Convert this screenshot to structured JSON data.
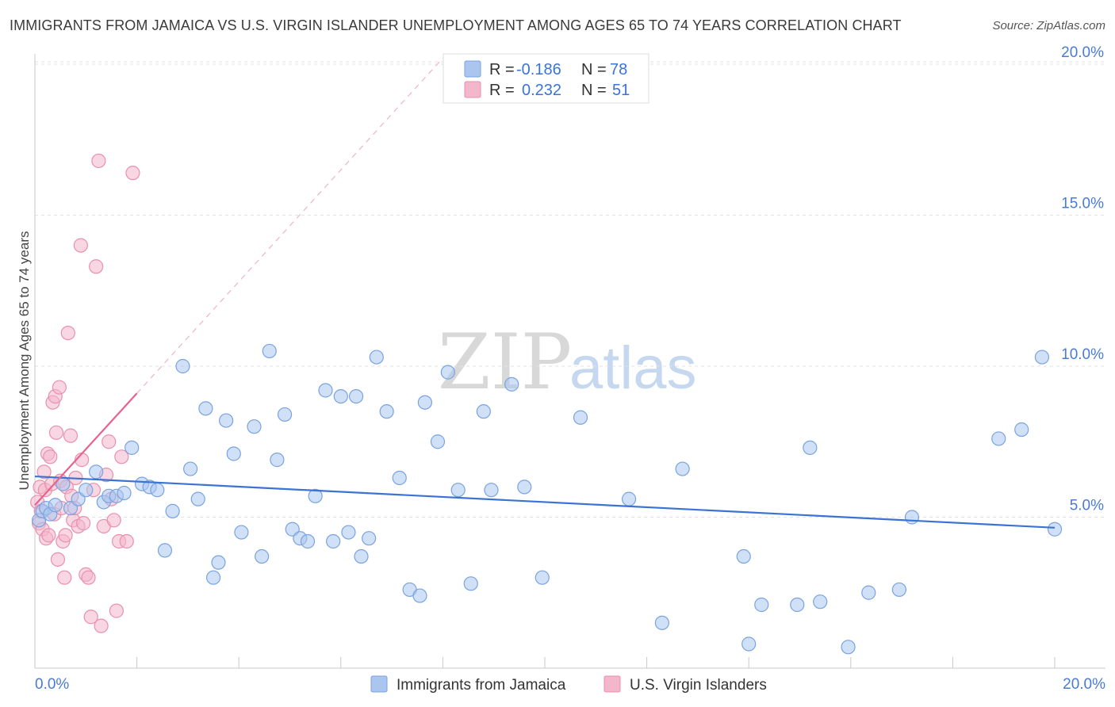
{
  "header": {
    "title": "IMMIGRANTS FROM JAMAICA VS U.S. VIRGIN ISLANDER UNEMPLOYMENT AMONG AGES 65 TO 74 YEARS CORRELATION CHART",
    "source": "Source: ZipAtlas.com"
  },
  "watermark": {
    "zip": "ZIP",
    "atlas": "atlas"
  },
  "legend": {
    "rows": [
      {
        "r_label": "R =",
        "r_value": "-0.186",
        "n_label": "N =",
        "n_value": "78"
      },
      {
        "r_label": "R =",
        "r_value": "0.232",
        "n_label": "N =",
        "n_value": "51"
      }
    ]
  },
  "bottom_legend": {
    "series1": "Immigrants from Jamaica",
    "series2": "U.S. Virgin Islanders"
  },
  "chart_data": {
    "type": "scatter",
    "title": "IMMIGRANTS FROM JAMAICA VS U.S. VIRGIN ISLANDER UNEMPLOYMENT AMONG AGES 65 TO 74 YEARS CORRELATION CHART",
    "xlabel": "",
    "ylabel": "Unemployment Among Ages 65 to 74 years",
    "xlim": [
      0,
      20
    ],
    "ylim": [
      0,
      20.5
    ],
    "x_tick_labels": [
      "0.0%",
      "20.0%"
    ],
    "y_ticks": [
      5,
      10,
      15,
      20
    ],
    "y_tick_labels": [
      "5.0%",
      "10.0%",
      "15.0%",
      "20.0%"
    ],
    "colors": {
      "blue": "#4a7bd1",
      "blue_fill": "#aac6ef",
      "pink": "#e8628c",
      "pink_fill": "#f4b6ca"
    },
    "series": [
      {
        "name": "Immigrants from Jamaica",
        "color": "#3b73d4",
        "trend": {
          "x": [
            0.0,
            20.0
          ],
          "y": [
            6.35,
            4.65
          ]
        },
        "points": [
          [
            0.08,
            4.9
          ],
          [
            0.15,
            5.2
          ],
          [
            0.22,
            5.3
          ],
          [
            0.3,
            5.1
          ],
          [
            0.4,
            5.4
          ],
          [
            0.55,
            6.1
          ],
          [
            0.7,
            5.3
          ],
          [
            0.85,
            5.6
          ],
          [
            1.0,
            5.9
          ],
          [
            1.2,
            6.5
          ],
          [
            1.35,
            5.5
          ],
          [
            1.45,
            5.7
          ],
          [
            1.6,
            5.7
          ],
          [
            1.75,
            5.8
          ],
          [
            1.9,
            7.3
          ],
          [
            2.1,
            6.1
          ],
          [
            2.25,
            6.0
          ],
          [
            2.4,
            5.9
          ],
          [
            2.55,
            3.9
          ],
          [
            2.7,
            5.2
          ],
          [
            2.9,
            10.0
          ],
          [
            3.05,
            6.6
          ],
          [
            3.2,
            5.6
          ],
          [
            3.35,
            8.6
          ],
          [
            3.5,
            3.0
          ],
          [
            3.6,
            3.5
          ],
          [
            3.75,
            8.2
          ],
          [
            3.9,
            7.1
          ],
          [
            4.05,
            4.5
          ],
          [
            4.3,
            8.0
          ],
          [
            4.45,
            3.7
          ],
          [
            4.6,
            10.5
          ],
          [
            4.75,
            6.9
          ],
          [
            4.9,
            8.4
          ],
          [
            5.05,
            4.6
          ],
          [
            5.2,
            4.3
          ],
          [
            5.35,
            4.2
          ],
          [
            5.5,
            5.7
          ],
          [
            5.7,
            9.2
          ],
          [
            5.85,
            4.2
          ],
          [
            6.0,
            9.0
          ],
          [
            6.15,
            4.5
          ],
          [
            6.3,
            9.0
          ],
          [
            6.4,
            3.7
          ],
          [
            6.55,
            4.3
          ],
          [
            6.7,
            10.3
          ],
          [
            6.9,
            8.5
          ],
          [
            7.15,
            6.3
          ],
          [
            7.35,
            2.6
          ],
          [
            7.55,
            2.4
          ],
          [
            7.65,
            8.8
          ],
          [
            7.9,
            7.5
          ],
          [
            8.1,
            9.8
          ],
          [
            8.3,
            5.9
          ],
          [
            8.55,
            2.8
          ],
          [
            8.8,
            8.5
          ],
          [
            8.95,
            5.9
          ],
          [
            9.35,
            9.4
          ],
          [
            9.6,
            6.0
          ],
          [
            9.95,
            3.0
          ],
          [
            10.7,
            8.3
          ],
          [
            11.65,
            5.6
          ],
          [
            12.3,
            1.5
          ],
          [
            12.7,
            6.6
          ],
          [
            13.9,
            3.7
          ],
          [
            14.0,
            0.8
          ],
          [
            14.25,
            2.1
          ],
          [
            14.95,
            2.1
          ],
          [
            15.2,
            7.3
          ],
          [
            15.4,
            2.2
          ],
          [
            15.95,
            0.7
          ],
          [
            16.35,
            2.5
          ],
          [
            16.95,
            2.6
          ],
          [
            17.2,
            5.0
          ],
          [
            18.9,
            7.6
          ],
          [
            19.35,
            7.9
          ],
          [
            19.75,
            10.3
          ],
          [
            20.0,
            4.6
          ]
        ]
      },
      {
        "name": "U.S. Virgin Islanders",
        "color": "#e8628c",
        "trend": {
          "x": [
            0.0,
            2.0
          ],
          "y": [
            5.4,
            9.1
          ]
        },
        "trend_extension": {
          "x": [
            2.0,
            8.0
          ],
          "y": [
            9.1,
            20.2
          ]
        },
        "points": [
          [
            0.05,
            5.5
          ],
          [
            0.08,
            4.8
          ],
          [
            0.1,
            6.0
          ],
          [
            0.12,
            5.2
          ],
          [
            0.15,
            4.6
          ],
          [
            0.18,
            6.5
          ],
          [
            0.2,
            5.9
          ],
          [
            0.22,
            4.3
          ],
          [
            0.25,
            7.1
          ],
          [
            0.27,
            4.4
          ],
          [
            0.3,
            7.0
          ],
          [
            0.33,
            6.1
          ],
          [
            0.35,
            8.8
          ],
          [
            0.38,
            5.1
          ],
          [
            0.4,
            9.0
          ],
          [
            0.42,
            7.8
          ],
          [
            0.45,
            3.6
          ],
          [
            0.48,
            9.3
          ],
          [
            0.5,
            6.2
          ],
          [
            0.52,
            5.3
          ],
          [
            0.55,
            4.2
          ],
          [
            0.58,
            3.0
          ],
          [
            0.6,
            4.4
          ],
          [
            0.62,
            6.0
          ],
          [
            0.65,
            11.1
          ],
          [
            0.7,
            7.7
          ],
          [
            0.72,
            5.7
          ],
          [
            0.75,
            4.9
          ],
          [
            0.78,
            5.3
          ],
          [
            0.8,
            6.3
          ],
          [
            0.85,
            4.7
          ],
          [
            0.9,
            14.0
          ],
          [
            0.92,
            6.9
          ],
          [
            0.95,
            4.8
          ],
          [
            1.0,
            3.1
          ],
          [
            1.05,
            3.0
          ],
          [
            1.1,
            1.7
          ],
          [
            1.15,
            5.9
          ],
          [
            1.2,
            13.3
          ],
          [
            1.25,
            16.8
          ],
          [
            1.3,
            1.4
          ],
          [
            1.35,
            4.7
          ],
          [
            1.4,
            6.4
          ],
          [
            1.45,
            7.5
          ],
          [
            1.5,
            5.6
          ],
          [
            1.55,
            4.9
          ],
          [
            1.6,
            1.9
          ],
          [
            1.65,
            4.2
          ],
          [
            1.7,
            7.0
          ],
          [
            1.8,
            4.2
          ],
          [
            1.92,
            16.4
          ]
        ]
      }
    ]
  }
}
